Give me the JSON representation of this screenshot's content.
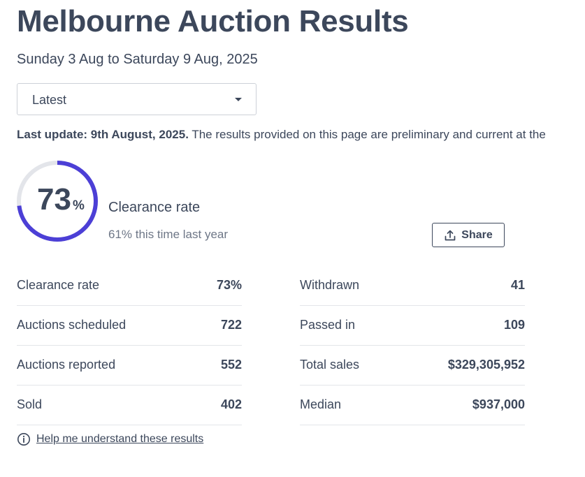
{
  "header": {
    "title": "Melbourne Auction Results",
    "date_range": "Sunday 3 Aug to Saturday 9 Aug, 2025"
  },
  "period_select": {
    "selected": "Latest"
  },
  "update_notice": {
    "bold": "Last update: 9th August, 2025.",
    "text": " The results provided on this page are preliminary and current at the"
  },
  "clearance": {
    "value": "73",
    "percent_sign": "%",
    "fraction": 0.73,
    "label": "Clearance rate",
    "last_year": "61% this time last year",
    "ring_color": "#4c3fd6",
    "track_color": "#e3e5ea"
  },
  "share": {
    "label": "Share",
    "icon": "share-upload-icon"
  },
  "stats": {
    "left": [
      {
        "label": "Clearance rate",
        "value": "73%"
      },
      {
        "label": "Auctions scheduled",
        "value": "722"
      },
      {
        "label": "Auctions reported",
        "value": "552"
      },
      {
        "label": "Sold",
        "value": "402"
      }
    ],
    "right": [
      {
        "label": "Withdrawn",
        "value": "41"
      },
      {
        "label": "Passed in",
        "value": "109"
      },
      {
        "label": "Total sales",
        "value": "$329,305,952"
      },
      {
        "label": "Median",
        "value": "$937,000"
      }
    ]
  },
  "help": {
    "label": "Help me understand these results",
    "icon": "info-icon"
  }
}
